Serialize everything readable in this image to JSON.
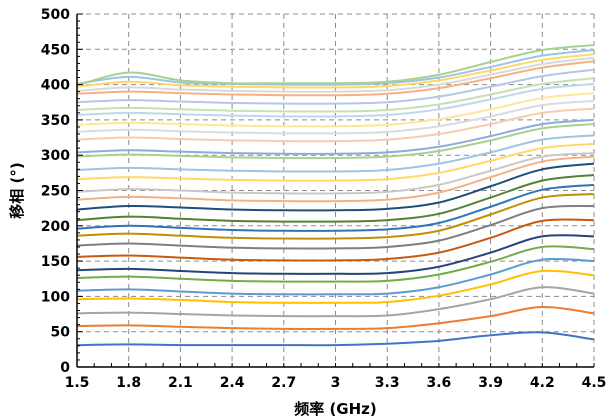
{
  "chart_data": {
    "type": "line",
    "title": "",
    "xlabel": "频率 (GHz)",
    "ylabel": "移相 (°)",
    "xlim": [
      1.5,
      4.5
    ],
    "ylim": [
      0,
      500
    ],
    "x_ticks": [
      1.5,
      1.8,
      2.1,
      2.4,
      2.7,
      3.0,
      3.3,
      3.6,
      3.9,
      4.2,
      4.5
    ],
    "x_tick_labels": [
      "1.5",
      "1.8",
      "2.1",
      "2.4",
      "2.7",
      "3",
      "3.3",
      "3.6",
      "3.9",
      "4.2",
      "4.5"
    ],
    "y_ticks": [
      0,
      50,
      100,
      150,
      200,
      250,
      300,
      350,
      400,
      450,
      500
    ],
    "y_tick_labels": [
      "0",
      "50",
      "100",
      "150",
      "200",
      "250",
      "300",
      "350",
      "400",
      "450",
      "500"
    ],
    "grid": "dashed",
    "legend": "none",
    "x": [
      1.5,
      1.8,
      2.1,
      2.4,
      2.7,
      3.0,
      3.3,
      3.6,
      3.9,
      4.2,
      4.5
    ],
    "series": [
      {
        "color": "#4472c4",
        "values": [
          31,
          32,
          31,
          31,
          31,
          31,
          33,
          37,
          45,
          49,
          39
        ]
      },
      {
        "color": "#ed7d31",
        "values": [
          58,
          59,
          57,
          55,
          54,
          54,
          55,
          62,
          72,
          85,
          76
        ]
      },
      {
        "color": "#a5a5a5",
        "values": [
          76,
          77,
          75,
          73,
          72,
          72,
          73,
          82,
          96,
          113,
          104
        ]
      },
      {
        "color": "#ffc000",
        "values": [
          96,
          97,
          95,
          92,
          91,
          91,
          92,
          101,
          117,
          136,
          130
        ]
      },
      {
        "color": "#5b9bd5",
        "values": [
          108,
          110,
          107,
          104,
          103,
          103,
          104,
          113,
          131,
          152,
          150
        ]
      },
      {
        "color": "#70ad47",
        "values": [
          126,
          128,
          125,
          122,
          121,
          121,
          122,
          131,
          149,
          170,
          167
        ]
      },
      {
        "color": "#264478",
        "values": [
          137,
          139,
          136,
          133,
          132,
          132,
          133,
          142,
          162,
          185,
          185
        ]
      },
      {
        "color": "#c55a11",
        "values": [
          156,
          158,
          155,
          152,
          151,
          151,
          153,
          162,
          183,
          207,
          208
        ]
      },
      {
        "color": "#7f7f7f",
        "values": [
          172,
          175,
          172,
          169,
          168,
          168,
          170,
          179,
          201,
          225,
          228
        ]
      },
      {
        "color": "#bf9000",
        "values": [
          186,
          189,
          186,
          183,
          182,
          182,
          184,
          193,
          216,
          240,
          245
        ]
      },
      {
        "color": "#2e75b6",
        "values": [
          196,
          200,
          197,
          194,
          193,
          193,
          195,
          204,
          227,
          251,
          258
        ]
      },
      {
        "color": "#548235",
        "values": [
          208,
          213,
          210,
          207,
          206,
          206,
          208,
          217,
          240,
          264,
          272
        ]
      },
      {
        "color": "#1f4e79",
        "values": [
          223,
          228,
          226,
          223,
          222,
          222,
          224,
          233,
          256,
          280,
          288
        ]
      },
      {
        "color": "#f4b183",
        "values": [
          237,
          241,
          239,
          236,
          235,
          235,
          237,
          247,
          269,
          291,
          298
        ]
      },
      {
        "color": "#c9c9c9",
        "values": [
          248,
          252,
          250,
          247,
          246,
          246,
          248,
          258,
          278,
          298,
          303
        ]
      },
      {
        "color": "#ffd966",
        "values": [
          266,
          269,
          267,
          265,
          264,
          264,
          266,
          275,
          292,
          310,
          316
        ]
      },
      {
        "color": "#9dc3e6",
        "values": [
          279,
          282,
          280,
          278,
          277,
          277,
          279,
          288,
          304,
          322,
          328
        ]
      },
      {
        "color": "#a9d18e",
        "values": [
          298,
          301,
          299,
          297,
          296,
          296,
          298,
          306,
          321,
          338,
          344
        ]
      },
      {
        "color": "#8faadc",
        "values": [
          304,
          307,
          305,
          303,
          302,
          302,
          304,
          312,
          327,
          344,
          350
        ]
      },
      {
        "color": "#f8cbad",
        "values": [
          322,
          325,
          323,
          321,
          320,
          320,
          322,
          330,
          344,
          360,
          366
        ]
      },
      {
        "color": "#dbdbdb",
        "values": [
          333,
          336,
          334,
          332,
          331,
          331,
          333,
          341,
          355,
          371,
          377
        ]
      },
      {
        "color": "#ffe699",
        "values": [
          343,
          346,
          344,
          342,
          341,
          341,
          343,
          351,
          365,
          381,
          388
        ]
      },
      {
        "color": "#bdd7ee",
        "values": [
          357,
          360,
          358,
          356,
          355,
          355,
          357,
          365,
          379,
          394,
          401
        ]
      },
      {
        "color": "#c5e0b4",
        "values": [
          364,
          367,
          365,
          363,
          362,
          362,
          364,
          372,
          386,
          401,
          409
        ]
      },
      {
        "color": "#b4c7e7",
        "values": [
          375,
          378,
          376,
          374,
          373,
          373,
          375,
          383,
          397,
          412,
          421
        ]
      },
      {
        "color": "#f4b183",
        "values": [
          387,
          390,
          388,
          386,
          385,
          385,
          387,
          395,
          409,
          424,
          433
        ]
      },
      {
        "color": "#d9d9d9",
        "values": [
          391,
          396,
          393,
          391,
          390,
          390,
          392,
          400,
          414,
          429,
          438
        ]
      },
      {
        "color": "#ffd966",
        "values": [
          397,
          404,
          399,
          397,
          396,
          396,
          398,
          406,
          420,
          435,
          443
        ]
      },
      {
        "color": "#9dc3e6",
        "values": [
          401,
          411,
          403,
          401,
          400,
          400,
          402,
          410,
          425,
          441,
          449
        ]
      },
      {
        "color": "#a9d18e",
        "values": [
          399,
          417,
          406,
          402,
          402,
          402,
          404,
          414,
          432,
          449,
          456
        ]
      }
    ]
  }
}
